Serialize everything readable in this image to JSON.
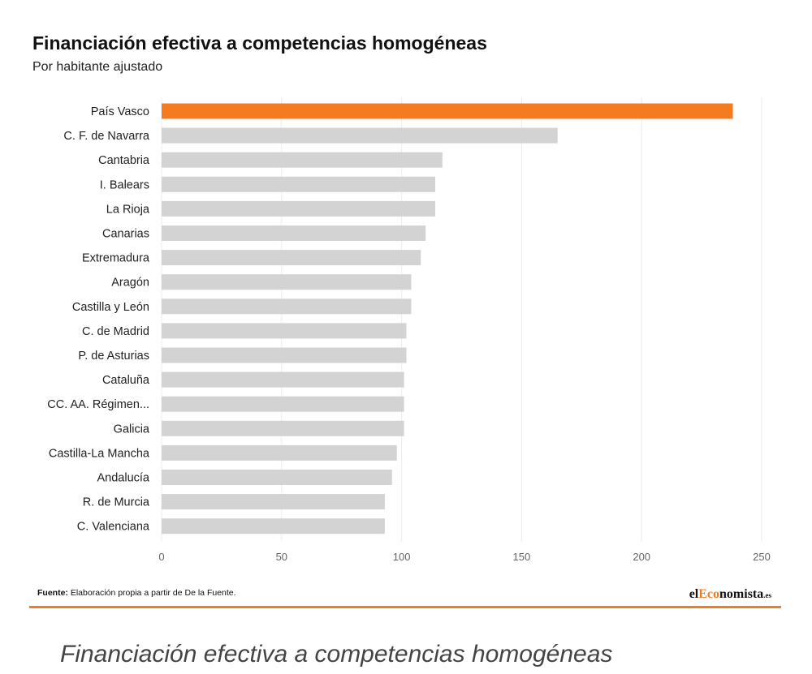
{
  "header": {
    "title": "Financiación efectiva a competencias homogéneas",
    "subtitle": "Por habitante ajustado"
  },
  "chart_data": {
    "type": "bar",
    "orientation": "horizontal",
    "title": "Financiación efectiva a competencias homogéneas",
    "subtitle": "Por habitante ajustado",
    "categories": [
      "País Vasco",
      "C. F. de Navarra",
      "Cantabria",
      "I. Balears",
      "La Rioja",
      "Canarias",
      "Extremadura",
      "Aragón",
      "Castilla y León",
      "C. de Madrid",
      "P. de Asturias",
      "Cataluña",
      "CC. AA. Régimen...",
      "Galicia",
      "Castilla-La Mancha",
      "Andalucía",
      "R. de Murcia",
      "C. Valenciana"
    ],
    "values": [
      238,
      165,
      117,
      114,
      114,
      110,
      108,
      104,
      104,
      102,
      102,
      101,
      101,
      101,
      98,
      96,
      93,
      93
    ],
    "highlight_index": 0,
    "xlim": [
      0,
      250
    ],
    "xticks": [
      "0",
      "50",
      "100",
      "150",
      "200",
      "250"
    ],
    "xlabel": "",
    "ylabel": "",
    "grid": "vertical",
    "legend": "none",
    "colors": {
      "highlight": "#f47b20",
      "bar": "#d3d3d3",
      "grid": "#ececec"
    }
  },
  "footer": {
    "source_label": "Fuente:",
    "source_text": "Elaboración propia a partir de De la Fuente.",
    "brand_prefix": "el",
    "brand_highlight": "Eco",
    "brand_rest": "nomista",
    "brand_suffix": ".es",
    "rule_color": "#f47b20"
  },
  "caption": "Financiación efectiva a competencias homogéneas"
}
